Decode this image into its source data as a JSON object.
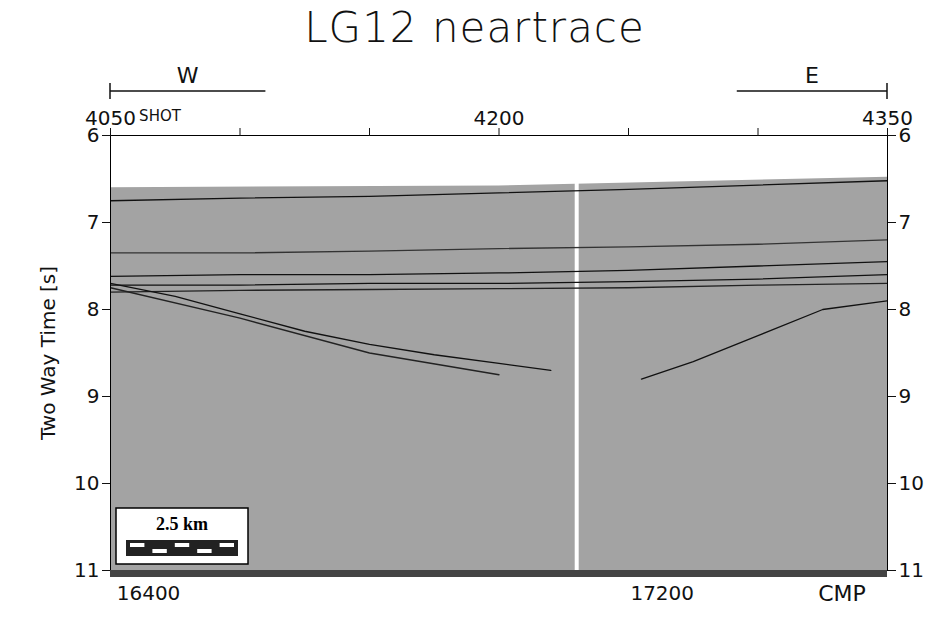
{
  "chart_data": {
    "type": "line",
    "title": "LG12 neartrace",
    "ylabel": "Two Way Time [s]",
    "xlabel": "SHOT",
    "x2label": "CMP",
    "xlim": [
      4050,
      4350
    ],
    "xticks": [
      4050,
      {
        "value": 4100,
        "label": null
      },
      {
        "value": 4150,
        "label": null
      },
      4200,
      {
        "value": 4250,
        "label": null
      },
      {
        "value": 4300,
        "label": null
      },
      4350
    ],
    "x2lim": [
      16340,
      17550
    ],
    "x2ticks": [
      16400,
      17200
    ],
    "ylim": [
      11,
      6
    ],
    "yticks": [
      6,
      7,
      8,
      9,
      10,
      11
    ],
    "directions": [
      {
        "text": "W",
        "from": 4050,
        "to": 4110
      },
      {
        "text": "E",
        "from": 4292,
        "to": 4350
      }
    ],
    "scale_bar": "2.5 km",
    "record_top": {
      "x": [
        4050,
        4200,
        4350
      ],
      "values": [
        6.6,
        6.58,
        6.48
      ],
      "color": "#a3a3a3"
    },
    "data_gap": 4230,
    "series": [
      {
        "x": [
          4050,
          4100,
          4150,
          4200,
          4250,
          4300,
          4350
        ],
        "values": [
          6.75,
          6.72,
          6.7,
          6.66,
          6.62,
          6.57,
          6.52
        ],
        "color": "#111111"
      },
      {
        "x": [
          4050,
          4100,
          4150,
          4200,
          4250,
          4300,
          4350
        ],
        "values": [
          7.35,
          7.35,
          7.33,
          7.3,
          7.28,
          7.25,
          7.2
        ],
        "color": "#333333"
      },
      {
        "x": [
          4050,
          4100,
          4150,
          4200,
          4250,
          4300,
          4350
        ],
        "values": [
          7.62,
          7.6,
          7.6,
          7.58,
          7.55,
          7.5,
          7.45
        ],
        "color": "#111111"
      },
      {
        "x": [
          4050,
          4100,
          4150,
          4200,
          4250,
          4300,
          4350
        ],
        "values": [
          7.72,
          7.72,
          7.7,
          7.7,
          7.68,
          7.65,
          7.6
        ],
        "color": "#111111"
      },
      {
        "x": [
          4050,
          4100,
          4150,
          4200,
          4250,
          4300,
          4350
        ],
        "values": [
          7.8,
          7.78,
          7.77,
          7.76,
          7.75,
          7.72,
          7.7
        ],
        "color": "#222222"
      },
      {
        "x": [
          4050,
          4075,
          4100,
          4125,
          4150,
          4175,
          4200,
          4220
        ],
        "values": [
          7.7,
          7.85,
          8.05,
          8.25,
          8.4,
          8.52,
          8.62,
          8.7
        ],
        "color": "#111111"
      },
      {
        "x": [
          4050,
          4100,
          4150,
          4200
        ],
        "values": [
          7.75,
          8.1,
          8.5,
          8.75
        ],
        "color": "#222222"
      },
      {
        "x": [
          4255,
          4275,
          4300,
          4325,
          4350
        ],
        "values": [
          8.8,
          8.6,
          8.3,
          8.0,
          7.9
        ],
        "color": "#111111"
      }
    ]
  }
}
